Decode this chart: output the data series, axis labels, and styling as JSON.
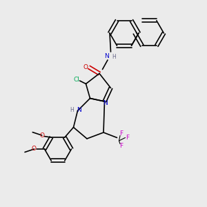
{
  "background_color": "#ebebeb",
  "figsize": [
    3.0,
    3.0
  ],
  "dpi": 100,
  "bond_color": "#000000",
  "bond_lw": 1.2,
  "atom_colors": {
    "N": "#0000cc",
    "O": "#cc0000",
    "Cl": "#00aa55",
    "F": "#cc00cc",
    "C": "#000000",
    "H_label": "#666688"
  },
  "font_size": 6.5,
  "font_size_small": 5.5
}
